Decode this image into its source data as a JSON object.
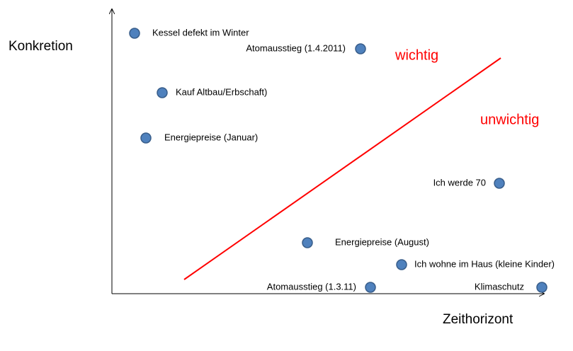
{
  "axes": {
    "y_label": "Konkretion",
    "x_label": "Zeithorizont"
  },
  "regions": {
    "upper": "wichtig",
    "lower": "unwichtig"
  },
  "nodes": [
    {
      "label": "Kessel defekt im Winter"
    },
    {
      "label": "Atomausstieg (1.4.2011)"
    },
    {
      "label": "Kauf Altbau/Erbschaft)"
    },
    {
      "label": "Energiepreise (Januar)"
    },
    {
      "label": "Ich werde 70"
    },
    {
      "label": "Energiepreise (August)"
    },
    {
      "label": "Ich wohne im Haus (kleine Kinder)"
    },
    {
      "label": "Atomausstieg (1.3.11)"
    },
    {
      "label": "Klimaschutz"
    }
  ]
}
